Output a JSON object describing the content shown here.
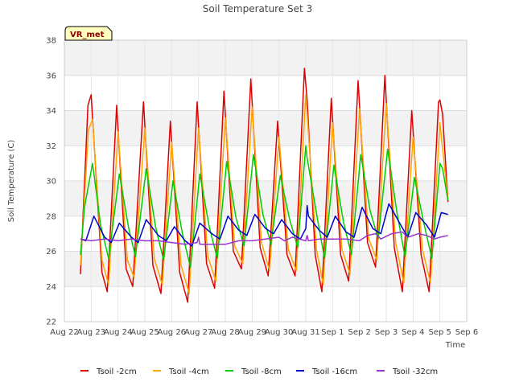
{
  "chart_data": {
    "type": "line",
    "title": "Soil Temperature Set 3",
    "xlabel": "Time",
    "ylabel": "Soil Temperature (C)",
    "station_label": "VR_met",
    "ylim": [
      22,
      38
    ],
    "yticks": [
      22,
      24,
      26,
      28,
      30,
      32,
      34,
      36,
      38
    ],
    "xlim": [
      0,
      15
    ],
    "xticks": [
      {
        "x": 0,
        "label": "Aug 22"
      },
      {
        "x": 1,
        "label": "Aug 23"
      },
      {
        "x": 2,
        "label": "Aug 24"
      },
      {
        "x": 3,
        "label": "Aug 25"
      },
      {
        "x": 4,
        "label": "Aug 26"
      },
      {
        "x": 5,
        "label": "Aug 27"
      },
      {
        "x": 6,
        "label": "Aug 28"
      },
      {
        "x": 7,
        "label": "Aug 29"
      },
      {
        "x": 8,
        "label": "Aug 30"
      },
      {
        "x": 9,
        "label": "Aug 31"
      },
      {
        "x": 10,
        "label": "Sep 1"
      },
      {
        "x": 11,
        "label": "Sep 2"
      },
      {
        "x": 12,
        "label": "Sep 3"
      },
      {
        "x": 13,
        "label": "Sep 4"
      },
      {
        "x": 14,
        "label": "Sep 5"
      },
      {
        "x": 15,
        "label": "Sep 6"
      }
    ],
    "grid": true,
    "legend_position": "bottom",
    "series": [
      {
        "name": "Tsoil -2cm",
        "color": "#dd0000",
        "points": [
          [
            0.6,
            24.7
          ],
          [
            0.88,
            34.3
          ],
          [
            1.0,
            34.9
          ],
          [
            1.4,
            24.8
          ],
          [
            1.6,
            23.7
          ],
          [
            1.95,
            34.3
          ],
          [
            2.3,
            25.0
          ],
          [
            2.55,
            24.0
          ],
          [
            2.95,
            34.5
          ],
          [
            3.3,
            25.2
          ],
          [
            3.6,
            23.6
          ],
          [
            3.95,
            33.4
          ],
          [
            4.3,
            24.8
          ],
          [
            4.6,
            23.1
          ],
          [
            4.95,
            34.5
          ],
          [
            5.3,
            25.3
          ],
          [
            5.6,
            23.9
          ],
          [
            5.95,
            35.1
          ],
          [
            6.3,
            26.0
          ],
          [
            6.6,
            25.0
          ],
          [
            6.95,
            35.8
          ],
          [
            7.3,
            26.2
          ],
          [
            7.6,
            24.6
          ],
          [
            7.95,
            33.4
          ],
          [
            8.3,
            25.8
          ],
          [
            8.6,
            24.6
          ],
          [
            8.95,
            36.4
          ],
          [
            9.05,
            34.6
          ],
          [
            9.35,
            25.8
          ],
          [
            9.6,
            23.7
          ],
          [
            9.95,
            34.7
          ],
          [
            10.3,
            25.8
          ],
          [
            10.6,
            24.3
          ],
          [
            10.95,
            35.7
          ],
          [
            11.3,
            26.5
          ],
          [
            11.6,
            25.1
          ],
          [
            11.95,
            36.0
          ],
          [
            12.3,
            26.2
          ],
          [
            12.6,
            23.7
          ],
          [
            12.95,
            34.0
          ],
          [
            13.3,
            25.8
          ],
          [
            13.6,
            23.7
          ],
          [
            13.95,
            34.5
          ],
          [
            14.0,
            34.6
          ],
          [
            14.1,
            33.8
          ],
          [
            14.3,
            28.8
          ]
        ]
      },
      {
        "name": "Tsoil -4cm",
        "color": "#ffa500",
        "points": [
          [
            0.6,
            25.2
          ],
          [
            0.9,
            32.9
          ],
          [
            1.05,
            33.5
          ],
          [
            1.4,
            25.5
          ],
          [
            1.65,
            24.1
          ],
          [
            2.0,
            32.8
          ],
          [
            2.35,
            25.5
          ],
          [
            2.6,
            24.5
          ],
          [
            3.0,
            33.0
          ],
          [
            3.35,
            25.6
          ],
          [
            3.65,
            24.1
          ],
          [
            4.0,
            32.2
          ],
          [
            4.35,
            25.2
          ],
          [
            4.65,
            23.6
          ],
          [
            5.0,
            33.0
          ],
          [
            5.35,
            25.7
          ],
          [
            5.65,
            24.3
          ],
          [
            6.0,
            33.6
          ],
          [
            6.35,
            26.3
          ],
          [
            6.65,
            25.3
          ],
          [
            7.0,
            34.2
          ],
          [
            7.35,
            26.5
          ],
          [
            7.65,
            24.9
          ],
          [
            8.0,
            32.5
          ],
          [
            8.35,
            26.1
          ],
          [
            8.65,
            24.9
          ],
          [
            9.0,
            34.9
          ],
          [
            9.4,
            26.1
          ],
          [
            9.65,
            24.1
          ],
          [
            10.0,
            33.3
          ],
          [
            10.35,
            26.1
          ],
          [
            10.65,
            24.7
          ],
          [
            11.0,
            34.1
          ],
          [
            11.35,
            26.7
          ],
          [
            11.65,
            25.5
          ],
          [
            12.0,
            34.4
          ],
          [
            12.35,
            26.5
          ],
          [
            12.65,
            24.2
          ],
          [
            13.0,
            32.5
          ],
          [
            13.35,
            26.1
          ],
          [
            13.65,
            24.2
          ],
          [
            14.0,
            33.3
          ],
          [
            14.3,
            28.9
          ]
        ]
      },
      {
        "name": "Tsoil -8cm",
        "color": "#00cc00",
        "points": [
          [
            0.6,
            25.8
          ],
          [
            0.75,
            28.5
          ],
          [
            1.05,
            31.0
          ],
          [
            1.35,
            27.5
          ],
          [
            1.65,
            25.6
          ],
          [
            2.05,
            30.4
          ],
          [
            2.4,
            27.3
          ],
          [
            2.65,
            25.7
          ],
          [
            3.05,
            30.7
          ],
          [
            3.4,
            27.4
          ],
          [
            3.7,
            25.5
          ],
          [
            4.05,
            30.0
          ],
          [
            4.4,
            27.0
          ],
          [
            4.7,
            25.1
          ],
          [
            5.05,
            30.4
          ],
          [
            5.4,
            27.4
          ],
          [
            5.7,
            25.6
          ],
          [
            6.05,
            31.1
          ],
          [
            6.4,
            27.9
          ],
          [
            6.7,
            26.3
          ],
          [
            7.05,
            31.5
          ],
          [
            7.4,
            28.1
          ],
          [
            7.7,
            26.4
          ],
          [
            8.05,
            30.3
          ],
          [
            8.4,
            27.8
          ],
          [
            8.7,
            26.2
          ],
          [
            9.0,
            32.0
          ],
          [
            9.05,
            31.3
          ],
          [
            9.45,
            27.7
          ],
          [
            9.7,
            25.6
          ],
          [
            10.05,
            30.9
          ],
          [
            10.4,
            27.7
          ],
          [
            10.7,
            25.8
          ],
          [
            11.05,
            31.5
          ],
          [
            11.4,
            28.3
          ],
          [
            11.7,
            26.7
          ],
          [
            12.05,
            31.8
          ],
          [
            12.4,
            28.2
          ],
          [
            12.7,
            25.7
          ],
          [
            13.05,
            30.2
          ],
          [
            13.4,
            27.6
          ],
          [
            13.7,
            25.6
          ],
          [
            14.0,
            31.0
          ],
          [
            14.1,
            30.7
          ],
          [
            14.3,
            28.9
          ]
        ]
      },
      {
        "name": "Tsoil -16cm",
        "color": "#0000cc",
        "points": [
          [
            0.6,
            26.7
          ],
          [
            0.8,
            26.6
          ],
          [
            1.1,
            28.0
          ],
          [
            1.5,
            26.8
          ],
          [
            1.75,
            26.5
          ],
          [
            2.05,
            27.6
          ],
          [
            2.5,
            26.8
          ],
          [
            2.75,
            26.5
          ],
          [
            3.05,
            27.8
          ],
          [
            3.5,
            26.9
          ],
          [
            3.8,
            26.6
          ],
          [
            4.1,
            27.4
          ],
          [
            4.5,
            26.6
          ],
          [
            4.75,
            26.3
          ],
          [
            5.05,
            27.6
          ],
          [
            5.5,
            27.0
          ],
          [
            5.8,
            26.7
          ],
          [
            6.1,
            28.0
          ],
          [
            6.5,
            27.2
          ],
          [
            6.8,
            26.9
          ],
          [
            7.1,
            28.1
          ],
          [
            7.5,
            27.3
          ],
          [
            7.8,
            27.0
          ],
          [
            8.1,
            27.8
          ],
          [
            8.5,
            27.0
          ],
          [
            8.8,
            26.7
          ],
          [
            9.0,
            27.3
          ],
          [
            9.05,
            28.6
          ],
          [
            9.1,
            28.0
          ],
          [
            9.5,
            27.2
          ],
          [
            9.8,
            26.8
          ],
          [
            10.1,
            28.0
          ],
          [
            10.5,
            27.1
          ],
          [
            10.8,
            26.8
          ],
          [
            11.1,
            28.5
          ],
          [
            11.5,
            27.3
          ],
          [
            11.8,
            27.0
          ],
          [
            12.1,
            28.7
          ],
          [
            12.5,
            27.6
          ],
          [
            12.8,
            26.8
          ],
          [
            13.1,
            28.2
          ],
          [
            13.5,
            27.5
          ],
          [
            13.8,
            26.8
          ],
          [
            14.05,
            28.2
          ],
          [
            14.3,
            28.1
          ]
        ]
      },
      {
        "name": "Tsoil -32cm",
        "color": "#9933cc",
        "points": [
          [
            0.6,
            26.7
          ],
          [
            1.0,
            26.6
          ],
          [
            1.5,
            26.7
          ],
          [
            2.0,
            26.6
          ],
          [
            2.5,
            26.7
          ],
          [
            3.0,
            26.6
          ],
          [
            3.5,
            26.6
          ],
          [
            4.0,
            26.5
          ],
          [
            4.5,
            26.4
          ],
          [
            4.95,
            26.5
          ],
          [
            5.0,
            26.8
          ],
          [
            5.05,
            26.4
          ],
          [
            5.5,
            26.4
          ],
          [
            6.0,
            26.4
          ],
          [
            6.5,
            26.6
          ],
          [
            7.0,
            26.6
          ],
          [
            7.5,
            26.7
          ],
          [
            8.0,
            26.8
          ],
          [
            8.2,
            26.6
          ],
          [
            8.5,
            26.8
          ],
          [
            9.0,
            26.6
          ],
          [
            9.05,
            26.9
          ],
          [
            9.1,
            26.6
          ],
          [
            9.5,
            26.7
          ],
          [
            10.0,
            26.7
          ],
          [
            10.5,
            26.7
          ],
          [
            11.0,
            26.6
          ],
          [
            11.3,
            26.9
          ],
          [
            11.6,
            27.0
          ],
          [
            11.8,
            26.7
          ],
          [
            12.2,
            27.0
          ],
          [
            12.6,
            27.1
          ],
          [
            12.8,
            26.8
          ],
          [
            13.2,
            27.0
          ],
          [
            13.5,
            26.9
          ],
          [
            13.8,
            26.7
          ],
          [
            14.0,
            26.8
          ],
          [
            14.3,
            26.9
          ]
        ]
      }
    ]
  }
}
